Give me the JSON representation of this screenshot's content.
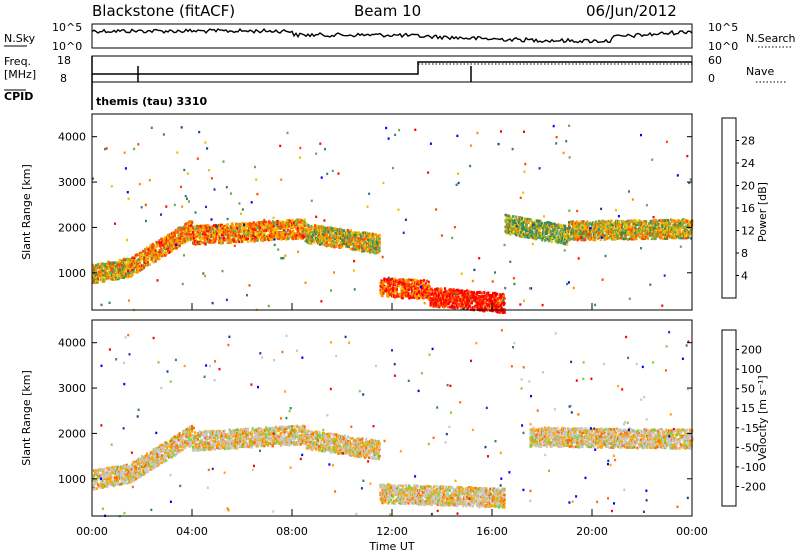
{
  "header": {
    "title": "Blackstone (fitACF)",
    "beam": "Beam 10",
    "date": "06/Jun/2012"
  },
  "status_panel": {
    "left_top_label": "N.Sky",
    "left_top_ticks": [
      "10^5",
      "10^0"
    ],
    "right_top_ticks": [
      "10^5",
      "10^0"
    ],
    "right_top_label": "N.Search",
    "freq_label_line1": "Freq.",
    "freq_label_line2": "[MHz]",
    "freq_ticks": [
      "18",
      "8"
    ],
    "nave_label": "Nave",
    "nave_ticks": [
      "60",
      "0"
    ],
    "cpid_label": "CPID",
    "cpid_text": "themis (tau) 3310"
  },
  "colors": {
    "power": [
      "#0000ff",
      "#1e3c9b",
      "#3c7878",
      "#2e8b57",
      "#6aa84f",
      "#f0c000",
      "#ff8c00",
      "#ff4500",
      "#ff0000"
    ],
    "velocity": [
      "#ff0000",
      "#ff6a00",
      "#ffa500",
      "#c8c8c8",
      "#c8c8c8",
      "#7cd13a",
      "#2e8b57",
      "#1e3c9b",
      "#0000ff"
    ]
  },
  "chart_data": [
    {
      "type": "heatmap",
      "title": "Power",
      "ylabel": "Slant Range [km]",
      "yticks": [
        "4000",
        "3000",
        "2000",
        "1000"
      ],
      "xlabel": "",
      "colorbar_label": "Power [dB]",
      "colorbar_ticks": [
        "28",
        "24",
        "20",
        "16",
        "12",
        "8",
        "4"
      ],
      "xlim": [
        0,
        24
      ],
      "ylim": [
        180,
        4500
      ],
      "bands": [
        {
          "start": 0.0,
          "end": 1.5,
          "from_km": 1000,
          "to_km": 1150,
          "level": 5
        },
        {
          "start": 1.5,
          "end": 4.0,
          "from_km": 1150,
          "to_km": 2000,
          "level": 6
        },
        {
          "start": 4.0,
          "end": 8.5,
          "from_km": 1850,
          "to_km": 2000,
          "level": 6
        },
        {
          "start": 8.5,
          "end": 11.5,
          "from_km": 1900,
          "to_km": 1650,
          "level": 5
        },
        {
          "start": 11.5,
          "end": 13.5,
          "from_km": 700,
          "to_km": 650,
          "level": 7
        },
        {
          "start": 13.5,
          "end": 16.5,
          "from_km": 500,
          "to_km": 350,
          "level": 8
        },
        {
          "start": 16.5,
          "end": 19.0,
          "from_km": 2100,
          "to_km": 1850,
          "level": 4
        },
        {
          "start": 19.0,
          "end": 24.0,
          "from_km": 1950,
          "to_km": 2000,
          "level": 5
        }
      ]
    },
    {
      "type": "heatmap",
      "title": "Velocity",
      "ylabel": "Slant Range [km]",
      "yticks": [
        "4000",
        "3000",
        "2000",
        "1000"
      ],
      "xlabel": "Time UT",
      "xticks": [
        "00:00",
        "04:00",
        "08:00",
        "12:00",
        "16:00",
        "20:00",
        "00:00"
      ],
      "colorbar_label": "Velocity [m s⁻¹]",
      "colorbar_ticks": [
        "200",
        "100",
        "50",
        "15",
        "-15",
        "-50",
        "-100",
        "-200"
      ],
      "xlim": [
        0,
        24
      ],
      "ylim": [
        180,
        4500
      ],
      "bands": [
        {
          "start": 0.0,
          "end": 1.5,
          "from_km": 1000,
          "to_km": 1150,
          "level": 3
        },
        {
          "start": 1.5,
          "end": 4.0,
          "from_km": 1150,
          "to_km": 2000,
          "level": 3
        },
        {
          "start": 4.0,
          "end": 8.5,
          "from_km": 1850,
          "to_km": 2000,
          "level": 3
        },
        {
          "start": 8.5,
          "end": 11.5,
          "from_km": 1900,
          "to_km": 1650,
          "level": 3
        },
        {
          "start": 11.5,
          "end": 16.5,
          "from_km": 700,
          "to_km": 600,
          "level": 3
        },
        {
          "start": 17.5,
          "end": 24.0,
          "from_km": 1950,
          "to_km": 1900,
          "level": 3
        }
      ]
    }
  ]
}
